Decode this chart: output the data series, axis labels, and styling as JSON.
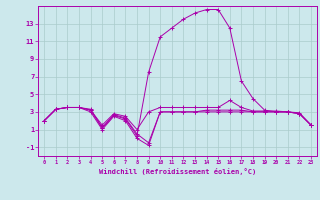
{
  "xlabel": "Windchill (Refroidissement éolien,°C)",
  "bg_color": "#cce8ec",
  "grid_color": "#aacccc",
  "line_color": "#aa00aa",
  "xlim": [
    -0.5,
    23.5
  ],
  "ylim": [
    -2.0,
    15.0
  ],
  "yticks": [
    -1,
    1,
    3,
    5,
    7,
    9,
    11,
    13
  ],
  "xticks": [
    0,
    1,
    2,
    3,
    4,
    5,
    6,
    7,
    8,
    9,
    10,
    11,
    12,
    13,
    14,
    15,
    16,
    17,
    18,
    19,
    20,
    21,
    22,
    23
  ],
  "series": [
    [
      2.0,
      3.3,
      3.5,
      3.5,
      3.3,
      1.2,
      2.7,
      2.3,
      0.5,
      -0.5,
      3.0,
      3.0,
      3.0,
      3.0,
      3.2,
      3.2,
      3.2,
      3.2,
      3.0,
      3.0,
      3.0,
      3.0,
      2.8,
      1.5
    ],
    [
      2.0,
      3.3,
      3.5,
      3.5,
      3.2,
      1.5,
      2.8,
      2.5,
      1.0,
      3.0,
      3.5,
      3.5,
      3.5,
      3.5,
      3.5,
      3.5,
      4.3,
      3.5,
      3.1,
      3.1,
      3.1,
      3.0,
      2.9,
      1.5
    ],
    [
      2.0,
      3.3,
      3.5,
      3.5,
      3.0,
      1.0,
      2.5,
      2.0,
      0.0,
      -0.8,
      3.0,
      3.0,
      3.0,
      3.0,
      3.0,
      3.0,
      3.0,
      3.0,
      3.0,
      3.0,
      3.0,
      3.0,
      2.8,
      1.5
    ],
    [
      2.0,
      3.3,
      3.5,
      3.5,
      3.2,
      1.2,
      2.6,
      2.2,
      0.3,
      7.5,
      11.5,
      12.5,
      13.5,
      14.2,
      14.6,
      14.6,
      12.5,
      6.5,
      4.5,
      3.2,
      3.0,
      3.0,
      2.8,
      1.5
    ]
  ]
}
